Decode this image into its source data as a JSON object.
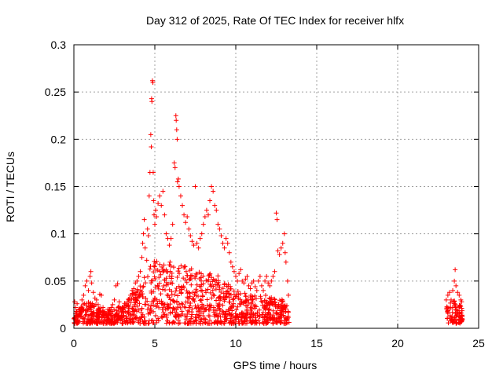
{
  "chart_data": {
    "type": "scatter",
    "title": "Day 312 of 2025, Rate Of TEC Index for receiver hlfx",
    "xlabel": "GPS time / hours",
    "ylabel": "ROTI / TECUs",
    "xlim": [
      0,
      25
    ],
    "ylim": [
      0,
      0.3
    ],
    "x_ticks": [
      0,
      5,
      10,
      15,
      20,
      25
    ],
    "x_tick_labels": [
      "0",
      "5",
      "10",
      "15",
      "20",
      "25"
    ],
    "y_ticks": [
      0,
      0.05,
      0.1,
      0.15,
      0.2,
      0.25,
      0.3
    ],
    "y_tick_labels": [
      "0",
      "0.05",
      "0.1",
      "0.15",
      "0.2",
      "0.25",
      "0.3"
    ],
    "grid": true,
    "legend": "none",
    "marker": "plus",
    "series": [
      {
        "color": "#ff0000",
        "points": [
          [
            0.05,
            0.028
          ],
          [
            0.1,
            0.022
          ],
          [
            0.15,
            0.018
          ],
          [
            0.2,
            0.026
          ],
          [
            0.3,
            0.02
          ],
          [
            0.4,
            0.015
          ],
          [
            0.5,
            0.03
          ],
          [
            0.6,
            0.035
          ],
          [
            0.7,
            0.045
          ],
          [
            0.8,
            0.05
          ],
          [
            0.9,
            0.04
          ],
          [
            1.0,
            0.055
          ],
          [
            1.05,
            0.06
          ],
          [
            1.1,
            0.048
          ],
          [
            1.2,
            0.038
          ],
          [
            1.3,
            0.032
          ],
          [
            1.4,
            0.03
          ],
          [
            1.5,
            0.025
          ],
          [
            1.6,
            0.036
          ],
          [
            1.7,
            0.035
          ],
          [
            1.8,
            0.022
          ],
          [
            1.9,
            0.018
          ],
          [
            2.0,
            0.015
          ],
          [
            2.1,
            0.02
          ],
          [
            2.2,
            0.018
          ],
          [
            2.3,
            0.022
          ],
          [
            2.4,
            0.025
          ],
          [
            2.5,
            0.03
          ],
          [
            2.6,
            0.045
          ],
          [
            2.7,
            0.047
          ],
          [
            2.8,
            0.028
          ],
          [
            2.9,
            0.02
          ],
          [
            3.0,
            0.018
          ],
          [
            3.1,
            0.022
          ],
          [
            3.2,
            0.025
          ],
          [
            3.3,
            0.028
          ],
          [
            3.4,
            0.03
          ],
          [
            3.5,
            0.035
          ],
          [
            3.6,
            0.04
          ],
          [
            3.7,
            0.042
          ],
          [
            3.8,
            0.048
          ],
          [
            3.9,
            0.05
          ],
          [
            4.0,
            0.055
          ],
          [
            4.1,
            0.06
          ],
          [
            4.2,
            0.075
          ],
          [
            4.25,
            0.09
          ],
          [
            4.3,
            0.1
          ],
          [
            4.35,
            0.115
          ],
          [
            4.4,
            0.085
          ],
          [
            4.5,
            0.072
          ],
          [
            4.55,
            0.105
          ],
          [
            4.6,
            0.098
          ],
          [
            4.65,
            0.14
          ],
          [
            4.7,
            0.165
          ],
          [
            4.75,
            0.205
          ],
          [
            4.78,
            0.192
          ],
          [
            4.8,
            0.243
          ],
          [
            4.82,
            0.24
          ],
          [
            4.85,
            0.262
          ],
          [
            4.88,
            0.26
          ],
          [
            4.9,
            0.165
          ],
          [
            4.92,
            0.135
          ],
          [
            4.95,
            0.12
          ],
          [
            5.0,
            0.11
          ],
          [
            5.05,
            0.125
          ],
          [
            5.1,
            0.118
          ],
          [
            5.2,
            0.132
          ],
          [
            5.3,
            0.14
          ],
          [
            5.4,
            0.13
          ],
          [
            5.5,
            0.145
          ],
          [
            5.6,
            0.12
          ],
          [
            5.7,
            0.1
          ],
          [
            5.8,
            0.095
          ],
          [
            5.9,
            0.088
          ],
          [
            6.0,
            0.095
          ],
          [
            6.1,
            0.11
          ],
          [
            6.2,
            0.175
          ],
          [
            6.25,
            0.17
          ],
          [
            6.3,
            0.225
          ],
          [
            6.32,
            0.22
          ],
          [
            6.35,
            0.21
          ],
          [
            6.38,
            0.2
          ],
          [
            6.4,
            0.155
          ],
          [
            6.45,
            0.158
          ],
          [
            6.5,
            0.15
          ],
          [
            6.6,
            0.14
          ],
          [
            6.7,
            0.13
          ],
          [
            6.8,
            0.12
          ],
          [
            6.9,
            0.112
          ],
          [
            7.0,
            0.118
          ],
          [
            7.1,
            0.105
          ],
          [
            7.2,
            0.098
          ],
          [
            7.3,
            0.092
          ],
          [
            7.4,
            0.088
          ],
          [
            7.5,
            0.15
          ],
          [
            7.6,
            0.09
          ],
          [
            7.7,
            0.085
          ],
          [
            7.8,
            0.095
          ],
          [
            7.9,
            0.1
          ],
          [
            8.0,
            0.11
          ],
          [
            8.1,
            0.118
          ],
          [
            8.2,
            0.125
          ],
          [
            8.3,
            0.12
          ],
          [
            8.4,
            0.135
          ],
          [
            8.5,
            0.15
          ],
          [
            8.6,
            0.145
          ],
          [
            8.7,
            0.13
          ],
          [
            8.8,
            0.125
          ],
          [
            8.9,
            0.11
          ],
          [
            9.0,
            0.105
          ],
          [
            9.1,
            0.098
          ],
          [
            9.2,
            0.09
          ],
          [
            9.3,
            0.085
          ],
          [
            9.4,
            0.095
          ],
          [
            9.5,
            0.09
          ],
          [
            9.6,
            0.08
          ],
          [
            9.7,
            0.07
          ],
          [
            9.8,
            0.065
          ],
          [
            9.9,
            0.06
          ],
          [
            10.0,
            0.055
          ],
          [
            10.1,
            0.05
          ],
          [
            10.2,
            0.058
          ],
          [
            10.3,
            0.062
          ],
          [
            10.4,
            0.05
          ],
          [
            10.5,
            0.048
          ],
          [
            10.6,
            0.052
          ],
          [
            10.7,
            0.055
          ],
          [
            10.8,
            0.045
          ],
          [
            10.9,
            0.042
          ],
          [
            11.0,
            0.048
          ],
          [
            11.1,
            0.05
          ],
          [
            11.2,
            0.044
          ],
          [
            11.3,
            0.04
          ],
          [
            11.4,
            0.05
          ],
          [
            11.5,
            0.055
          ],
          [
            11.6,
            0.045
          ],
          [
            11.7,
            0.04
          ],
          [
            11.8,
            0.05
          ],
          [
            11.9,
            0.055
          ],
          [
            12.0,
            0.048
          ],
          [
            12.1,
            0.045
          ],
          [
            12.2,
            0.05
          ],
          [
            12.3,
            0.055
          ],
          [
            12.4,
            0.06
          ],
          [
            12.5,
            0.122
          ],
          [
            12.55,
            0.115
          ],
          [
            12.6,
            0.082
          ],
          [
            12.7,
            0.078
          ],
          [
            12.8,
            0.085
          ],
          [
            12.9,
            0.09
          ],
          [
            13.0,
            0.1
          ],
          [
            13.05,
            0.08
          ],
          [
            13.1,
            0.07
          ],
          [
            13.2,
            0.05
          ],
          [
            13.25,
            0.035
          ],
          [
            23.0,
            0.03
          ],
          [
            23.1,
            0.035
          ],
          [
            23.2,
            0.038
          ],
          [
            23.3,
            0.03
          ],
          [
            23.4,
            0.04
          ],
          [
            23.5,
            0.05
          ],
          [
            23.55,
            0.062
          ],
          [
            23.6,
            0.045
          ],
          [
            23.7,
            0.038
          ],
          [
            23.8,
            0.035
          ],
          [
            23.9,
            0.03
          ],
          [
            23.95,
            0.028
          ]
        ]
      }
    ],
    "bands": [
      {
        "x": [
          0.0,
          13.3
        ],
        "y_floor": 0.005,
        "y_top_by_hour": [
          [
            0,
            0.02
          ],
          [
            1,
            0.03
          ],
          [
            2,
            0.018
          ],
          [
            3,
            0.025
          ],
          [
            4,
            0.045
          ],
          [
            5,
            0.075
          ],
          [
            6,
            0.07
          ],
          [
            7,
            0.065
          ],
          [
            8,
            0.06
          ],
          [
            9,
            0.055
          ],
          [
            10,
            0.04
          ],
          [
            11,
            0.035
          ],
          [
            12,
            0.035
          ],
          [
            13,
            0.03
          ],
          [
            13.3,
            0.02
          ]
        ]
      },
      {
        "x": [
          23.0,
          24.0
        ],
        "y_floor": 0.005,
        "y_top_by_hour": [
          [
            23.0,
            0.025
          ],
          [
            23.5,
            0.03
          ],
          [
            24.0,
            0.025
          ]
        ]
      }
    ]
  }
}
